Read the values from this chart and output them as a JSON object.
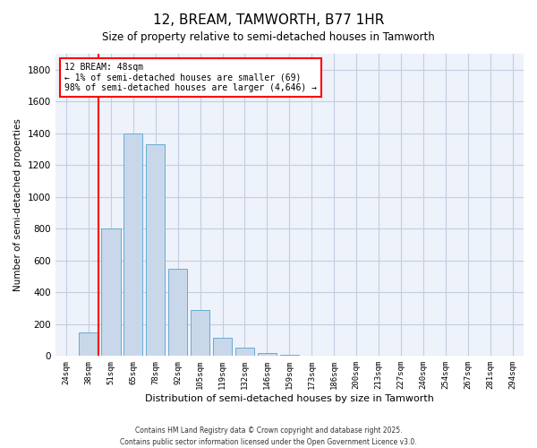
{
  "title": "12, BREAM, TAMWORTH, B77 1HR",
  "subtitle": "Size of property relative to semi-detached houses in Tamworth",
  "xlabel": "Distribution of semi-detached houses by size in Tamworth",
  "ylabel": "Number of semi-detached properties",
  "categories": [
    "24sqm",
    "38sqm",
    "51sqm",
    "65sqm",
    "78sqm",
    "92sqm",
    "105sqm",
    "119sqm",
    "132sqm",
    "146sqm",
    "159sqm",
    "173sqm",
    "186sqm",
    "200sqm",
    "213sqm",
    "227sqm",
    "240sqm",
    "254sqm",
    "267sqm",
    "281sqm",
    "294sqm"
  ],
  "values": [
    0,
    150,
    800,
    1400,
    1330,
    550,
    290,
    115,
    50,
    20,
    5,
    2,
    0,
    0,
    0,
    0,
    0,
    0,
    0,
    0,
    0
  ],
  "bar_color": "#c8d8ea",
  "bar_edge_color": "#6aaad4",
  "red_line_index": 1,
  "annotation_title": "12 BREAM: 48sqm",
  "annotation_line1": "← 1% of semi-detached houses are smaller (69)",
  "annotation_line2": "98% of semi-detached houses are larger (4,646) →",
  "ylim": [
    0,
    1900
  ],
  "yticks": [
    0,
    200,
    400,
    600,
    800,
    1000,
    1200,
    1400,
    1600,
    1800
  ],
  "footnote1": "Contains HM Land Registry data © Crown copyright and database right 2025.",
  "footnote2": "Contains public sector information licensed under the Open Government Licence v3.0.",
  "bg_color": "#eef2fb",
  "grid_color": "#c5cde0"
}
